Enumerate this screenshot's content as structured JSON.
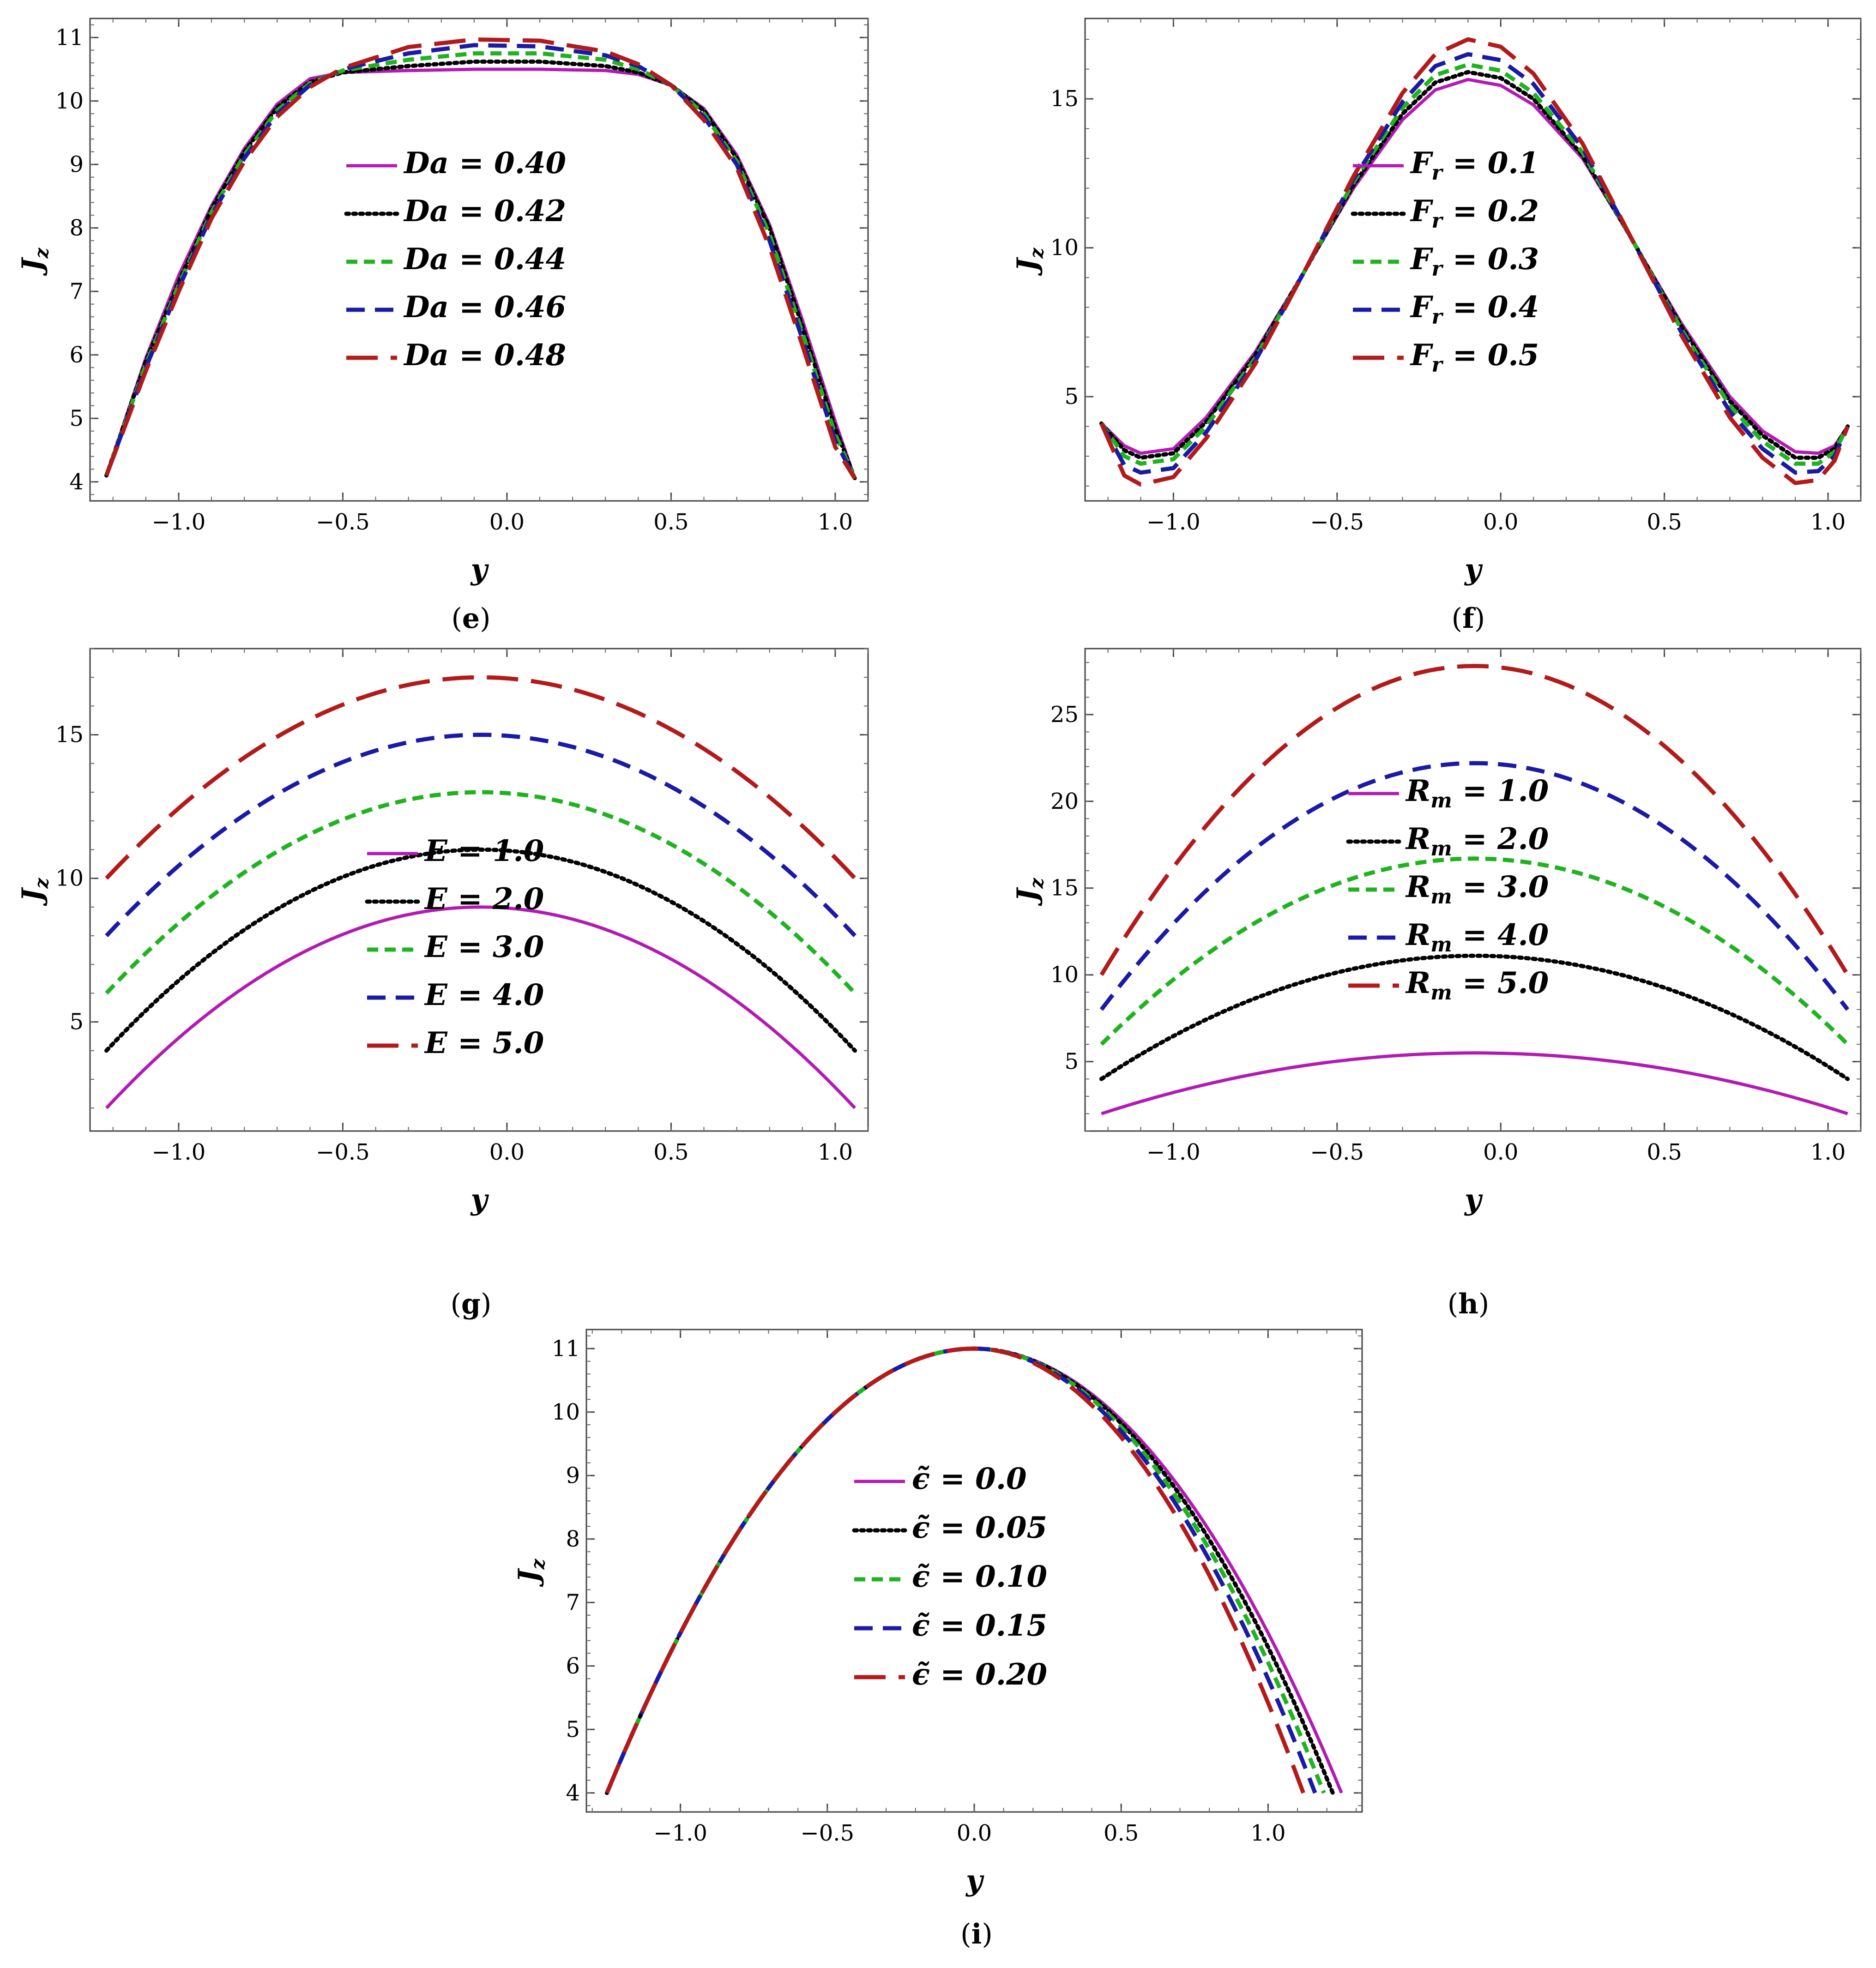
{
  "figure": {
    "panels": [
      "e",
      "f",
      "g",
      "h",
      "i"
    ]
  },
  "chart_data": [
    {
      "id": "e",
      "panel_label": "e",
      "type": "line",
      "title": "",
      "xlabel": "y",
      "ylabel": "J_z",
      "xlim": [
        -1.27,
        1.1
      ],
      "ylim": [
        3.7,
        11.3
      ],
      "xticks": [
        -1.0,
        -0.5,
        0.0,
        0.5,
        1.0
      ],
      "xtick_labels": [
        "−1.0",
        "−0.5",
        "0.0",
        "0.5",
        "1.0"
      ],
      "yticks": [
        4,
        5,
        6,
        7,
        8,
        9,
        10,
        11
      ],
      "ytick_labels": [
        "4",
        "5",
        "6",
        "7",
        "8",
        "9",
        "10",
        "11"
      ],
      "legend_position": "center-left",
      "legend_symbol": "Da",
      "series": [
        {
          "name": "Da = 0.40",
          "value": "0.40",
          "color": "#b31ab3",
          "style": "solid",
          "x": [
            -1.22,
            -1.1,
            -1.0,
            -0.9,
            -0.8,
            -0.7,
            -0.6,
            -0.5,
            -0.3,
            -0.1,
            0.1,
            0.3,
            0.4,
            0.5,
            0.6,
            0.7,
            0.8,
            0.9,
            1.0,
            1.06
          ],
          "y": [
            4.1,
            5.95,
            7.25,
            8.35,
            9.25,
            9.95,
            10.35,
            10.45,
            10.48,
            10.5,
            10.5,
            10.48,
            10.42,
            10.25,
            9.88,
            9.15,
            8.05,
            6.55,
            4.95,
            4.05
          ]
        },
        {
          "name": "Da = 0.42",
          "value": "0.42",
          "color": "#000000",
          "style": "dotted",
          "x": [
            -1.22,
            -1.1,
            -1.0,
            -0.9,
            -0.8,
            -0.7,
            -0.6,
            -0.5,
            -0.3,
            -0.1,
            0.1,
            0.3,
            0.4,
            0.5,
            0.6,
            0.7,
            0.8,
            0.9,
            1.0,
            1.06
          ],
          "y": [
            4.1,
            5.9,
            7.15,
            8.3,
            9.2,
            9.9,
            10.3,
            10.45,
            10.55,
            10.62,
            10.62,
            10.55,
            10.45,
            10.25,
            9.85,
            9.1,
            8.0,
            6.45,
            4.85,
            4.05
          ]
        },
        {
          "name": "Da = 0.44",
          "value": "0.44",
          "color": "#1fb31f",
          "style": "short-dash",
          "x": [
            -1.22,
            -1.1,
            -1.0,
            -0.9,
            -0.8,
            -0.7,
            -0.6,
            -0.5,
            -0.3,
            -0.1,
            0.1,
            0.3,
            0.4,
            0.5,
            0.6,
            0.7,
            0.8,
            0.9,
            1.0,
            1.06
          ],
          "y": [
            4.1,
            5.85,
            7.1,
            8.25,
            9.15,
            9.85,
            10.28,
            10.48,
            10.65,
            10.75,
            10.75,
            10.65,
            10.5,
            10.25,
            9.8,
            9.05,
            7.9,
            6.35,
            4.75,
            4.05
          ]
        },
        {
          "name": "Da = 0.46",
          "value": "0.46",
          "color": "#1a1aa6",
          "style": "dash",
          "x": [
            -1.22,
            -1.1,
            -1.0,
            -0.9,
            -0.8,
            -0.7,
            -0.6,
            -0.5,
            -0.3,
            -0.1,
            0.1,
            0.3,
            0.4,
            0.5,
            0.6,
            0.7,
            0.8,
            0.9,
            1.0,
            1.06
          ],
          "y": [
            4.1,
            5.8,
            7.05,
            8.2,
            9.1,
            9.8,
            10.25,
            10.5,
            10.75,
            10.88,
            10.86,
            10.72,
            10.55,
            10.25,
            9.75,
            9.0,
            7.8,
            6.25,
            4.65,
            4.05
          ]
        },
        {
          "name": "Da = 0.48",
          "value": "0.48",
          "color": "#b31a1a",
          "style": "long-dash",
          "x": [
            -1.22,
            -1.1,
            -1.0,
            -0.9,
            -0.8,
            -0.7,
            -0.6,
            -0.5,
            -0.3,
            -0.1,
            0.1,
            0.3,
            0.4,
            0.5,
            0.6,
            0.7,
            0.8,
            0.9,
            1.0,
            1.06
          ],
          "y": [
            4.1,
            5.75,
            7.0,
            8.15,
            9.05,
            9.75,
            10.22,
            10.52,
            10.85,
            10.97,
            10.95,
            10.78,
            10.58,
            10.25,
            9.7,
            8.95,
            7.7,
            6.15,
            4.55,
            4.05
          ]
        }
      ]
    },
    {
      "id": "f",
      "panel_label": "f",
      "type": "line",
      "title": "",
      "xlabel": "y",
      "ylabel": "J_z",
      "xlim": [
        -1.27,
        1.1
      ],
      "ylim": [
        1.5,
        17.7
      ],
      "xticks": [
        -1.0,
        -0.5,
        0.0,
        0.5,
        1.0
      ],
      "xtick_labels": [
        "−1.0",
        "−0.5",
        "0.0",
        "0.5",
        "1.0"
      ],
      "yticks": [
        5,
        10,
        15
      ],
      "ytick_labels": [
        "5",
        "10",
        "15"
      ],
      "legend_position": "center",
      "legend_symbol": "F",
      "legend_subscript": "r",
      "series": [
        {
          "name": "F_r = 0.1",
          "value": "0.1",
          "color": "#b31ab3",
          "style": "solid",
          "x": [
            -1.22,
            -1.15,
            -1.1,
            -1.0,
            -0.9,
            -0.75,
            -0.6,
            -0.45,
            -0.3,
            -0.2,
            -0.1,
            0.0,
            0.1,
            0.25,
            0.4,
            0.55,
            0.7,
            0.8,
            0.9,
            0.97,
            1.02,
            1.06
          ],
          "y": [
            4.1,
            3.35,
            3.1,
            3.25,
            4.3,
            6.5,
            9.2,
            12.0,
            14.3,
            15.3,
            15.65,
            15.45,
            14.8,
            13.0,
            10.3,
            7.5,
            5.0,
            3.85,
            3.15,
            3.1,
            3.35,
            4.0
          ]
        },
        {
          "name": "F_r = 0.2",
          "value": "0.2",
          "color": "#000000",
          "style": "dotted",
          "x": [
            -1.22,
            -1.15,
            -1.1,
            -1.0,
            -0.9,
            -0.75,
            -0.6,
            -0.45,
            -0.3,
            -0.2,
            -0.1,
            0.0,
            0.1,
            0.25,
            0.4,
            0.55,
            0.7,
            0.8,
            0.9,
            0.97,
            1.02,
            1.06
          ],
          "y": [
            4.1,
            3.2,
            2.95,
            3.1,
            4.15,
            6.4,
            9.2,
            12.1,
            14.5,
            15.55,
            15.9,
            15.7,
            15.0,
            13.1,
            10.3,
            7.4,
            4.85,
            3.7,
            2.95,
            2.95,
            3.25,
            4.0
          ]
        },
        {
          "name": "F_r = 0.3",
          "value": "0.3",
          "color": "#1fb31f",
          "style": "short-dash",
          "x": [
            -1.22,
            -1.15,
            -1.1,
            -1.0,
            -0.9,
            -0.75,
            -0.6,
            -0.45,
            -0.3,
            -0.2,
            -0.1,
            0.0,
            0.1,
            0.25,
            0.4,
            0.55,
            0.7,
            0.8,
            0.9,
            0.97,
            1.02,
            1.06
          ],
          "y": [
            4.1,
            3.0,
            2.75,
            2.9,
            4.0,
            6.3,
            9.2,
            12.2,
            14.7,
            15.8,
            16.15,
            15.95,
            15.2,
            13.2,
            10.3,
            7.3,
            4.7,
            3.5,
            2.75,
            2.75,
            3.15,
            4.0
          ]
        },
        {
          "name": "F_r = 0.4",
          "value": "0.4",
          "color": "#1a1aa6",
          "style": "dash",
          "x": [
            -1.22,
            -1.15,
            -1.1,
            -1.0,
            -0.9,
            -0.75,
            -0.6,
            -0.45,
            -0.3,
            -0.2,
            -0.1,
            0.0,
            0.1,
            0.25,
            0.4,
            0.55,
            0.7,
            0.8,
            0.9,
            0.97,
            1.02,
            1.06
          ],
          "y": [
            4.1,
            2.7,
            2.45,
            2.6,
            3.8,
            6.2,
            9.2,
            12.3,
            14.9,
            16.1,
            16.5,
            16.3,
            15.5,
            13.35,
            10.3,
            7.2,
            4.5,
            3.25,
            2.45,
            2.5,
            3.0,
            4.0
          ]
        },
        {
          "name": "F_r = 0.5",
          "value": "0.5",
          "color": "#b31a1a",
          "style": "long-dash",
          "x": [
            -1.22,
            -1.15,
            -1.1,
            -1.0,
            -0.9,
            -0.75,
            -0.6,
            -0.45,
            -0.3,
            -0.2,
            -0.1,
            0.0,
            0.1,
            0.25,
            0.4,
            0.55,
            0.7,
            0.8,
            0.9,
            0.97,
            1.02,
            1.06
          ],
          "y": [
            4.1,
            2.35,
            2.05,
            2.3,
            3.6,
            6.1,
            9.2,
            12.4,
            15.2,
            16.5,
            17.0,
            16.75,
            15.85,
            13.5,
            10.3,
            7.1,
            4.3,
            2.95,
            2.1,
            2.2,
            2.85,
            4.0
          ]
        }
      ]
    },
    {
      "id": "g",
      "panel_label": "g",
      "type": "line",
      "title": "",
      "xlabel": "y",
      "ylabel": "J_z",
      "xlim": [
        -1.27,
        1.1
      ],
      "ylim": [
        1.2,
        18.0
      ],
      "xticks": [
        -1.0,
        -0.5,
        0.0,
        0.5,
        1.0
      ],
      "xtick_labels": [
        "−1.0",
        "−0.5",
        "0.0",
        "0.5",
        "1.0"
      ],
      "yticks": [
        5,
        10,
        15
      ],
      "ytick_labels": [
        "5",
        "10",
        "15"
      ],
      "legend_position": "center",
      "legend_symbol": "E",
      "series": [
        {
          "name": "E = 1.0",
          "value": "1.0",
          "color": "#b31ab3",
          "style": "solid",
          "end": 2.0,
          "peak": 9.0
        },
        {
          "name": "E = 2.0",
          "value": "2.0",
          "color": "#000000",
          "style": "dotted",
          "end": 4.0,
          "peak": 11.0
        },
        {
          "name": "E = 3.0",
          "value": "3.0",
          "color": "#1fb31f",
          "style": "short-dash",
          "end": 6.0,
          "peak": 13.0
        },
        {
          "name": "E = 4.0",
          "value": "4.0",
          "color": "#1a1aa6",
          "style": "dash",
          "end": 8.0,
          "peak": 15.0
        },
        {
          "name": "E = 5.0",
          "value": "5.0",
          "color": "#b31a1a",
          "style": "long-dash",
          "end": 10.0,
          "peak": 17.0
        }
      ],
      "curve_note": "parabolic profiles from y = -1.22 to 1.06 with vertex at y = -0.08"
    },
    {
      "id": "h",
      "panel_label": "h",
      "type": "line",
      "title": "",
      "xlabel": "y",
      "ylabel": "J_z",
      "xlim": [
        -1.27,
        1.1
      ],
      "ylim": [
        1.0,
        28.8
      ],
      "xticks": [
        -1.0,
        -0.5,
        0.0,
        0.5,
        1.0
      ],
      "xtick_labels": [
        "−1.0",
        "−0.5",
        "0.0",
        "0.5",
        "1.0"
      ],
      "yticks": [
        5,
        10,
        15,
        20,
        25
      ],
      "ytick_labels": [
        "5",
        "10",
        "15",
        "20",
        "25"
      ],
      "legend_position": "center",
      "legend_symbol": "R",
      "legend_subscript": "m",
      "series": [
        {
          "name": "R_m = 1.0",
          "value": "1.0",
          "color": "#b31ab3",
          "style": "solid",
          "end": 2.0,
          "peak": 5.5
        },
        {
          "name": "R_m = 2.0",
          "value": "2.0",
          "color": "#000000",
          "style": "dotted",
          "end": 4.0,
          "peak": 11.1
        },
        {
          "name": "R_m = 3.0",
          "value": "3.0",
          "color": "#1fb31f",
          "style": "short-dash",
          "end": 6.0,
          "peak": 16.7
        },
        {
          "name": "R_m = 4.0",
          "value": "4.0",
          "color": "#1a1aa6",
          "style": "dash",
          "end": 8.0,
          "peak": 22.2
        },
        {
          "name": "R_m = 5.0",
          "value": "5.0",
          "color": "#b31a1a",
          "style": "long-dash",
          "end": 10.0,
          "peak": 27.8
        }
      ],
      "curve_note": "parabolic profiles from y = -1.22 to 1.06 with vertex at y = -0.08"
    },
    {
      "id": "i",
      "panel_label": "i",
      "type": "line",
      "title": "",
      "xlabel": "y",
      "ylabel": "J_z",
      "xlim": [
        -1.32,
        1.32
      ],
      "ylim": [
        3.7,
        11.3
      ],
      "xticks": [
        -1.0,
        -0.5,
        0.0,
        0.5,
        1.0
      ],
      "xtick_labels": [
        "−1.0",
        "−0.5",
        "0.0",
        "0.5",
        "1.0"
      ],
      "yticks": [
        4,
        5,
        6,
        7,
        8,
        9,
        10,
        11
      ],
      "ytick_labels": [
        "4",
        "5",
        "6",
        "7",
        "8",
        "9",
        "10",
        "11"
      ],
      "legend_position": "center",
      "legend_symbol": "ϵ̃",
      "series": [
        {
          "name": "ϵ̃ = 0.0",
          "value": "0.0",
          "color": "#b31ab3",
          "style": "solid",
          "right_end": 1.25
        },
        {
          "name": "ϵ̃ = 0.05",
          "value": "0.05",
          "color": "#000000",
          "style": "dotted",
          "right_end": 1.22
        },
        {
          "name": "ϵ̃ = 0.10",
          "value": "0.10",
          "color": "#1fb31f",
          "style": "short-dash",
          "right_end": 1.19
        },
        {
          "name": "ϵ̃ = 0.15",
          "value": "0.15",
          "color": "#1a1aa6",
          "style": "dash",
          "right_end": 1.16
        },
        {
          "name": "ϵ̃ = 0.20",
          "value": "0.20",
          "color": "#b31a1a",
          "style": "long-dash",
          "right_end": 1.12
        }
      ],
      "curve_note": "profiles start at (y = -1.25, J_z = 4), peak 11 at y = 0, end at J_z = 4"
    }
  ]
}
